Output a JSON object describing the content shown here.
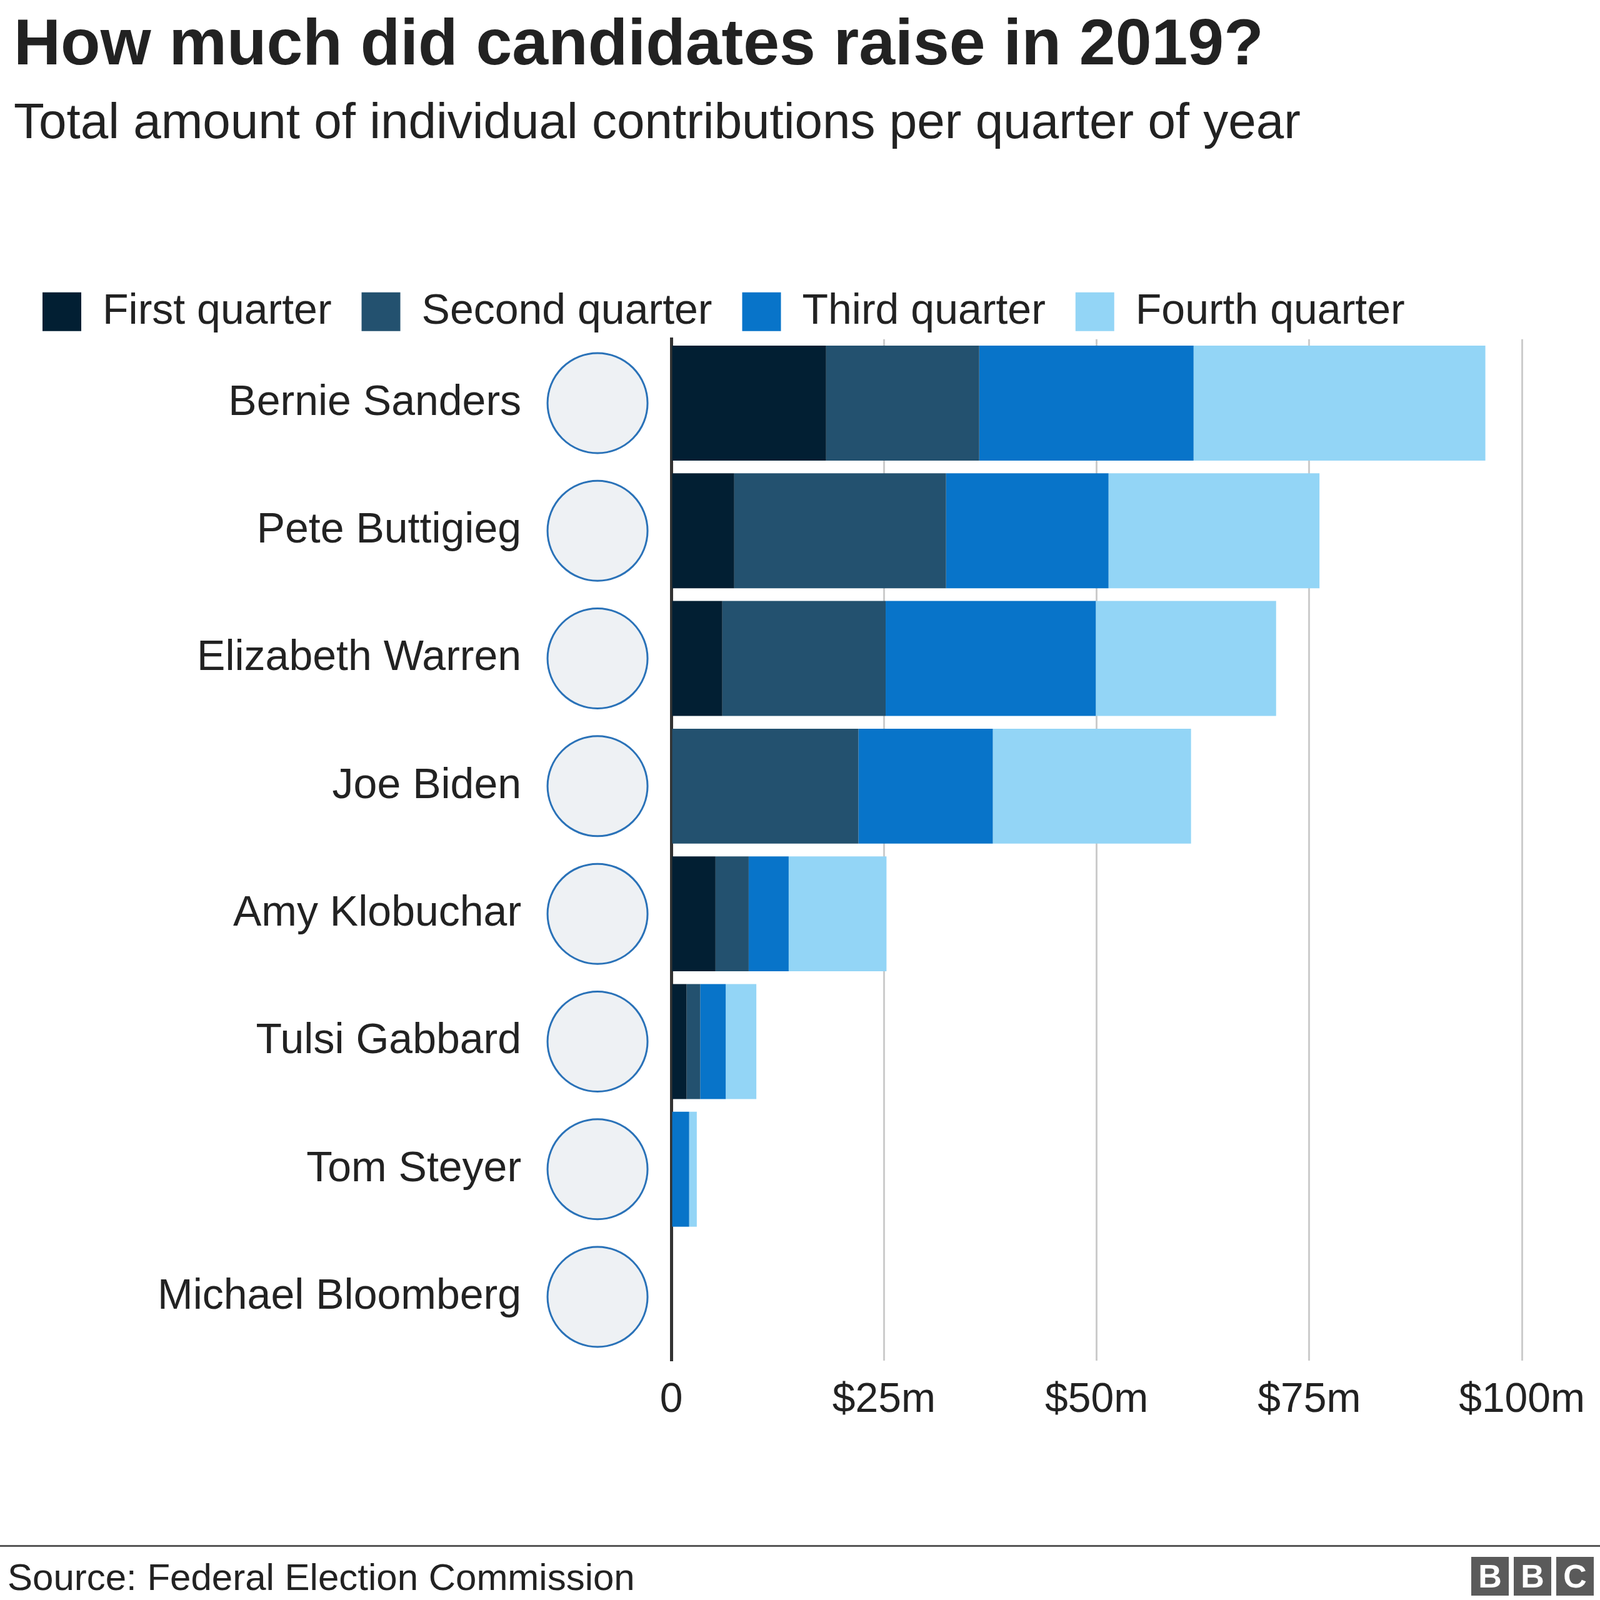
{
  "chart_data": {
    "type": "bar",
    "title": "How much did candidates raise in 2019?",
    "subtitle": "Total amount of individual contributions per quarter of year",
    "source": "Source: Federal Election Commission",
    "logo": "BBC",
    "orientation": "horizontal",
    "stacked": true,
    "grid": true,
    "legend": "top",
    "categories": [
      "Bernie Sanders",
      "Pete Buttigieg",
      "Elizabeth Warren",
      "Joe Biden",
      "Amy Klobuchar",
      "Tulsi Gabbard",
      "Tom Steyer",
      "Michael Bloomberg"
    ],
    "series": [
      {
        "name": "First quarter",
        "color": "#021f33",
        "values": [
          18.2,
          7.4,
          6.0,
          0,
          5.2,
          1.8,
          0,
          0
        ]
      },
      {
        "name": "Second quarter",
        "color": "#23516f",
        "values": [
          18.0,
          24.9,
          19.2,
          22.0,
          3.9,
          1.6,
          0,
          0
        ]
      },
      {
        "name": "Third quarter",
        "color": "#0874c9",
        "values": [
          25.2,
          19.1,
          24.7,
          15.8,
          4.7,
          3.0,
          2.1,
          0
        ]
      },
      {
        "name": "Fourth quarter",
        "color": "#93d5f6",
        "values": [
          34.3,
          24.8,
          21.2,
          23.3,
          11.5,
          3.6,
          0.9,
          0
        ]
      }
    ],
    "xlim": [
      0,
      100
    ],
    "xticks": [
      0,
      {
        "value": 25,
        "label": "$25m"
      },
      {
        "value": 50,
        "label": "$50m"
      },
      {
        "value": 75,
        "label": "$75m"
      },
      {
        "value": 100,
        "label": "$100m"
      }
    ]
  }
}
